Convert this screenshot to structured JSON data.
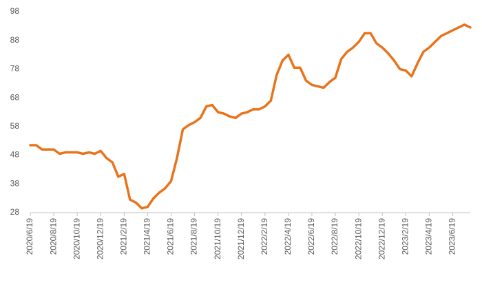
{
  "chart_data": {
    "type": "line",
    "categories": [
      "2020/6/19",
      null,
      null,
      null,
      "2020/8/19",
      null,
      null,
      null,
      "2020/10/19",
      null,
      null,
      null,
      "2020/12/19",
      null,
      null,
      null,
      "2021/2/19",
      null,
      null,
      null,
      "2021/4/19",
      null,
      null,
      null,
      "2021/6/19",
      null,
      null,
      null,
      "2021/8/19",
      null,
      null,
      null,
      "2021/10/19",
      null,
      null,
      null,
      "2021/12/19",
      null,
      null,
      null,
      "2022/2/19",
      null,
      null,
      null,
      "2022/4/19",
      null,
      null,
      null,
      "2022/6/19",
      null,
      null,
      null,
      "2022/8/19",
      null,
      null,
      null,
      "2022/10/19",
      null,
      null,
      null,
      "2022/12/19",
      null,
      null,
      null,
      "2023/2/19",
      null,
      null,
      null,
      "2023/4/19",
      null,
      null,
      null,
      "2023/6/19",
      null,
      null,
      null
    ],
    "values": [
      51.5,
      51.5,
      50,
      50,
      50,
      48.5,
      49,
      49,
      49,
      48.5,
      49,
      48.5,
      49.5,
      47,
      45.5,
      40.5,
      41.5,
      32.5,
      31.5,
      29.5,
      30,
      33,
      35,
      36.5,
      39,
      47,
      57,
      58.5,
      59.5,
      61,
      65,
      65.5,
      63,
      62.5,
      61.5,
      61,
      62.5,
      63,
      64,
      64,
      65,
      67,
      76,
      81,
      83,
      78.5,
      78.5,
      74,
      72.5,
      72,
      71.5,
      73.5,
      75,
      81.5,
      84,
      85.5,
      87.5,
      90.5,
      90.5,
      87,
      85.5,
      83.5,
      81,
      78,
      77.5,
      75.5,
      80,
      84,
      85.5,
      87.5,
      89.5,
      90.5,
      91.5,
      92.5,
      93.5,
      92.5
    ],
    "color": "#e8731a",
    "ylim": [
      28,
      98
    ],
    "yticks": [
      28,
      38,
      48,
      58,
      68,
      78,
      88,
      98
    ],
    "grid": false
  }
}
